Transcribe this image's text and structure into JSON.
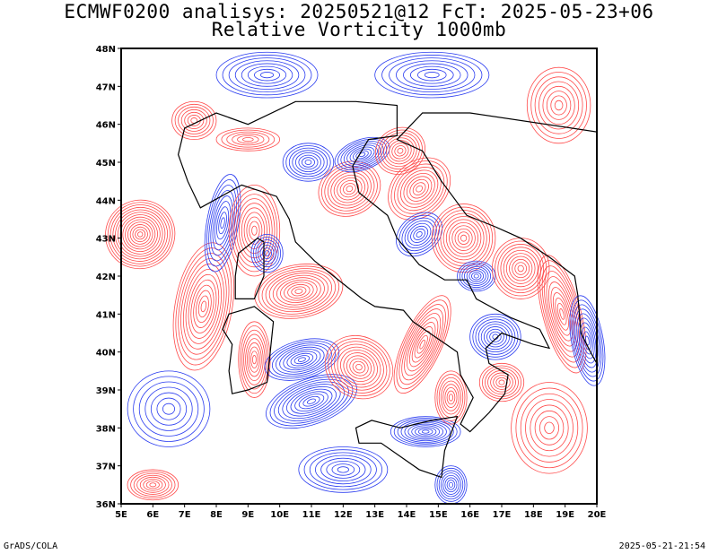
{
  "title_line1": "ECMWF0200 analisys: 20250521@12 FcT: 2025-05-23+06",
  "title_line2": "Relative Vorticity 1000mb",
  "footer_left": "GrADS/COLA",
  "footer_right": "2025-05-21-21:54",
  "map": {
    "lon_labels": [
      "5E",
      "6E",
      "7E",
      "8E",
      "9E",
      "10E",
      "11E",
      "12E",
      "13E",
      "14E",
      "15E",
      "16E",
      "17E",
      "18E",
      "19E",
      "20E"
    ],
    "lat_labels": [
      "48N",
      "47N",
      "46N",
      "45N",
      "44N",
      "43N",
      "42N",
      "41N",
      "40N",
      "39N",
      "38N",
      "37N",
      "36N"
    ],
    "colors": {
      "positive_vorticity": "#ff4a4a",
      "negative_vorticity": "#2a3cf0",
      "coastline": "#000000",
      "frame": "#000000"
    }
  }
}
